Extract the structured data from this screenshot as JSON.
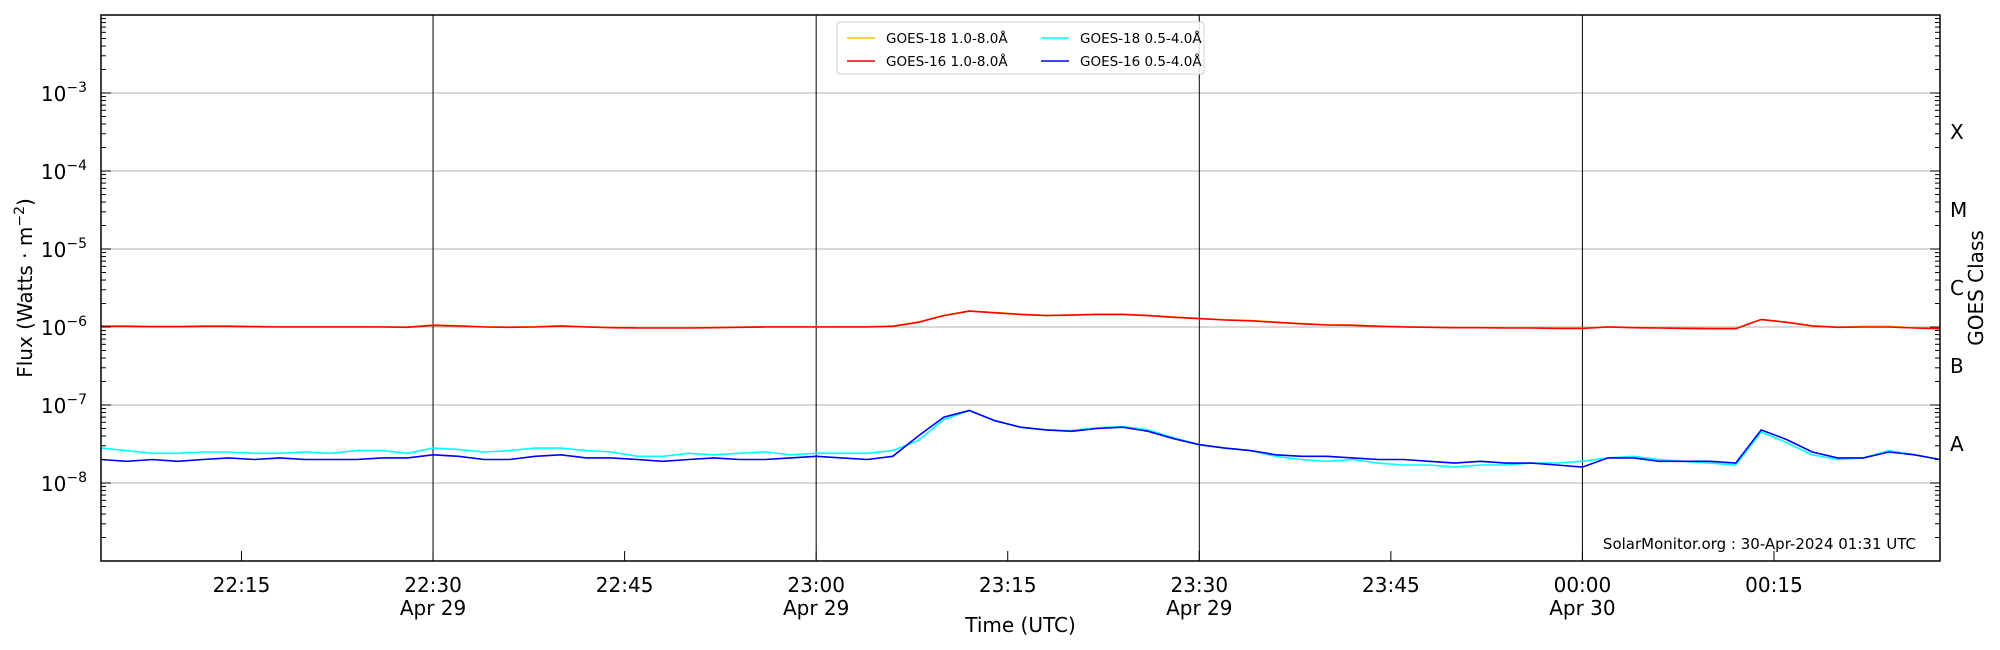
{
  "chart_data": {
    "type": "line",
    "xlabel": "Time (UTC)",
    "ylabel": "Flux (Watts · m^-2)",
    "ylabel_right": "GOES Class",
    "yscale": "log",
    "ylim": [
      1e-09,
      0.01
    ],
    "xlim": [
      "2024-04-29 22:04",
      "2024-04-30 00:28"
    ],
    "grid": true,
    "legend_placement": "top-center",
    "y_ticks": [
      {
        "value": 0.001,
        "base": "10",
        "exp": "−3"
      },
      {
        "value": 0.0001,
        "base": "10",
        "exp": "−4"
      },
      {
        "value": 1e-05,
        "base": "10",
        "exp": "−5"
      },
      {
        "value": 1e-06,
        "base": "10",
        "exp": "−6"
      },
      {
        "value": 1e-07,
        "base": "10",
        "exp": "−7"
      },
      {
        "value": 1e-08,
        "base": "10",
        "exp": "−8"
      }
    ],
    "x_ticks": [
      {
        "time": "2024-04-29 22:15",
        "label": "22:15",
        "sub": ""
      },
      {
        "time": "2024-04-29 22:30",
        "label": "22:30",
        "sub": "Apr 29"
      },
      {
        "time": "2024-04-29 22:45",
        "label": "22:45",
        "sub": ""
      },
      {
        "time": "2024-04-29 23:00",
        "label": "23:00",
        "sub": "Apr 29"
      },
      {
        "time": "2024-04-29 23:15",
        "label": "23:15",
        "sub": ""
      },
      {
        "time": "2024-04-29 23:30",
        "label": "23:30",
        "sub": "Apr 29"
      },
      {
        "time": "2024-04-29 23:45",
        "label": "23:45",
        "sub": ""
      },
      {
        "time": "2024-04-30 00:00",
        "label": "00:00",
        "sub": "Apr 30"
      },
      {
        "time": "2024-04-30 00:15",
        "label": "00:15",
        "sub": ""
      }
    ],
    "vertical_lines": [
      "2024-04-29 22:30",
      "2024-04-29 23:00",
      "2024-04-29 23:30",
      "2024-04-30 00:00"
    ],
    "class_labels": [
      {
        "label": "X",
        "value": 0.000316
      },
      {
        "label": "M",
        "value": 3.16e-05
      },
      {
        "label": "C",
        "value": 3.16e-06
      },
      {
        "label": "B",
        "value": 3.16e-07
      },
      {
        "label": "A",
        "value": 3.16e-08
      }
    ],
    "x_start": "2024-04-29 22:04",
    "x_step_minutes": 2,
    "series": [
      {
        "name": "GOES-18 1.0-8.0Å",
        "color": "#ffc000",
        "values": [
          1.03e-06,
          1.03e-06,
          1.02e-06,
          1.02e-06,
          1.03e-06,
          1.03e-06,
          1.02e-06,
          1.01e-06,
          1.01e-06,
          1.01e-06,
          1.01e-06,
          1.01e-06,
          1e-06,
          1.06e-06,
          1.04e-06,
          1.01e-06,
          1e-06,
          1.01e-06,
          1.04e-06,
          1.01e-06,
          9.9e-07,
          9.8e-07,
          9.8e-07,
          9.8e-07,
          9.9e-07,
          1e-06,
          1.01e-06,
          1.01e-06,
          1.01e-06,
          1.01e-06,
          1.01e-06,
          1.03e-06,
          1.16e-06,
          1.41e-06,
          1.61e-06,
          1.53e-06,
          1.46e-06,
          1.41e-06,
          1.43e-06,
          1.46e-06,
          1.46e-06,
          1.41e-06,
          1.34e-06,
          1.29e-06,
          1.24e-06,
          1.21e-06,
          1.16e-06,
          1.11e-06,
          1.07e-06,
          1.06e-06,
          1.03e-06,
          1.01e-06,
          1e-06,
          9.9e-07,
          9.9e-07,
          9.8e-07,
          9.8e-07,
          9.7e-07,
          9.7e-07,
          1.01e-06,
          9.9e-07,
          9.8e-07,
          9.7e-07,
          9.6e-07,
          9.6e-07,
          1.24e-06,
          1.15e-06,
          1.04e-06,
          1e-06,
          1.02e-06,
          1.02e-06,
          9.8e-07,
          9.6e-07
        ]
      },
      {
        "name": "GOES-16 1.0-8.0Å",
        "color": "#ff0000",
        "values": [
          1.02e-06,
          1.02e-06,
          1.01e-06,
          1.01e-06,
          1.02e-06,
          1.02e-06,
          1.01e-06,
          1e-06,
          1e-06,
          1e-06,
          1e-06,
          1e-06,
          9.9e-07,
          1.05e-06,
          1.03e-06,
          1e-06,
          9.9e-07,
          1e-06,
          1.03e-06,
          1e-06,
          9.8e-07,
          9.7e-07,
          9.7e-07,
          9.7e-07,
          9.8e-07,
          9.9e-07,
          1e-06,
          1e-06,
          1e-06,
          1e-06,
          1e-06,
          1.02e-06,
          1.15e-06,
          1.4e-06,
          1.6e-06,
          1.52e-06,
          1.45e-06,
          1.4e-06,
          1.42e-06,
          1.45e-06,
          1.45e-06,
          1.4e-06,
          1.33e-06,
          1.28e-06,
          1.23e-06,
          1.2e-06,
          1.15e-06,
          1.1e-06,
          1.06e-06,
          1.05e-06,
          1.02e-06,
          1e-06,
          9.9e-07,
          9.8e-07,
          9.8e-07,
          9.7e-07,
          9.7e-07,
          9.6e-07,
          9.6e-07,
          1e-06,
          9.8e-07,
          9.7e-07,
          9.6e-07,
          9.5e-07,
          9.5e-07,
          1.25e-06,
          1.15e-06,
          1.03e-06,
          9.9e-07,
          1e-06,
          1e-06,
          9.7e-07,
          9.5e-07
        ]
      },
      {
        "name": "GOES-18 0.5-4.0Å",
        "color": "#00ffff",
        "values": [
          2.8e-08,
          2.6e-08,
          2.4e-08,
          2.4e-08,
          2.5e-08,
          2.5e-08,
          2.4e-08,
          2.4e-08,
          2.5e-08,
          2.4e-08,
          2.6e-08,
          2.6e-08,
          2.4e-08,
          2.8e-08,
          2.7e-08,
          2.5e-08,
          2.6e-08,
          2.8e-08,
          2.8e-08,
          2.6e-08,
          2.5e-08,
          2.2e-08,
          2.2e-08,
          2.4e-08,
          2.3e-08,
          2.4e-08,
          2.5e-08,
          2.3e-08,
          2.4e-08,
          2.4e-08,
          2.4e-08,
          2.6e-08,
          3.5e-08,
          6.5e-08,
          8.5e-08,
          6.3e-08,
          5.2e-08,
          4.8e-08,
          4.7e-08,
          5.1e-08,
          5.3e-08,
          4.8e-08,
          3.8e-08,
          3.1e-08,
          2.8e-08,
          2.6e-08,
          2.2e-08,
          2e-08,
          1.9e-08,
          2e-08,
          1.8e-08,
          1.7e-08,
          1.7e-08,
          1.6e-08,
          1.7e-08,
          1.7e-08,
          1.8e-08,
          1.8e-08,
          1.9e-08,
          2.1e-08,
          2.2e-08,
          2e-08,
          1.9e-08,
          1.8e-08,
          1.7e-08,
          4.5e-08,
          3.3e-08,
          2.3e-08,
          2e-08,
          2.1e-08,
          2.6e-08,
          2.3e-08,
          2e-08
        ]
      },
      {
        "name": "GOES-16 0.5-4.0Å",
        "color": "#0000ff",
        "values": [
          2e-08,
          1.9e-08,
          2e-08,
          1.9e-08,
          2e-08,
          2.1e-08,
          2e-08,
          2.1e-08,
          2e-08,
          2e-08,
          2e-08,
          2.1e-08,
          2.1e-08,
          2.3e-08,
          2.2e-08,
          2e-08,
          2e-08,
          2.2e-08,
          2.3e-08,
          2.1e-08,
          2.1e-08,
          2e-08,
          1.9e-08,
          2e-08,
          2.1e-08,
          2e-08,
          2e-08,
          2.1e-08,
          2.2e-08,
          2.1e-08,
          2e-08,
          2.2e-08,
          4e-08,
          7e-08,
          8.5e-08,
          6.3e-08,
          5.2e-08,
          4.8e-08,
          4.6e-08,
          5e-08,
          5.2e-08,
          4.6e-08,
          3.7e-08,
          3.1e-08,
          2.8e-08,
          2.6e-08,
          2.3e-08,
          2.2e-08,
          2.2e-08,
          2.1e-08,
          2e-08,
          2e-08,
          1.9e-08,
          1.8e-08,
          1.9e-08,
          1.8e-08,
          1.8e-08,
          1.7e-08,
          1.6e-08,
          2.1e-08,
          2.1e-08,
          1.9e-08,
          1.9e-08,
          1.9e-08,
          1.8e-08,
          4.8e-08,
          3.6e-08,
          2.5e-08,
          2.1e-08,
          2.1e-08,
          2.5e-08,
          2.3e-08,
          2e-08
        ]
      }
    ],
    "legend": [
      {
        "label": "GOES-18 1.0-8.0Å",
        "color": "#ffc000"
      },
      {
        "label": "GOES-18 0.5-4.0Å",
        "color": "#00ffff"
      },
      {
        "label": "GOES-16 1.0-8.0Å",
        "color": "#ff0000"
      },
      {
        "label": "GOES-16 0.5-4.0Å",
        "color": "#0000ff"
      }
    ],
    "annotation": "SolarMonitor.org : 30-Apr-2024 01:31 UTC"
  }
}
